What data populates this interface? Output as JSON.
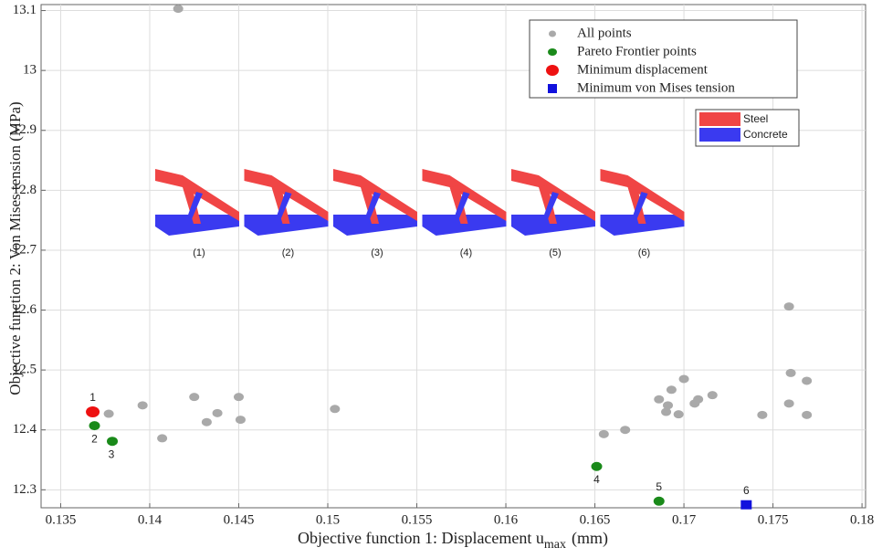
{
  "chart_data": {
    "type": "scatter",
    "xlabel": [
      "Objective function 1: Displacement u",
      "max",
      "(mm)"
    ],
    "ylabel": "Objective function 2: Von Mises tension (MPa)",
    "xlim": [
      0.1339,
      0.1802
    ],
    "ylim": [
      12.27,
      13.11
    ],
    "xticks": [
      0.135,
      0.14,
      0.145,
      0.15,
      0.155,
      0.16,
      0.165,
      0.17,
      0.175,
      0.18
    ],
    "yticks": [
      12.3,
      12.4,
      12.5,
      12.6,
      12.7,
      12.8,
      12.9,
      13,
      13.1
    ],
    "grid": true,
    "legend": "upper right",
    "series": [
      {
        "name": "All points",
        "color": "#a9a9a9",
        "x": [
          0.1416,
          0.1377,
          0.1396,
          0.1407,
          0.1425,
          0.1432,
          0.1438,
          0.145,
          0.1451,
          0.1504,
          0.1655,
          0.1667,
          0.1686,
          0.169,
          0.1691,
          0.1693,
          0.1697,
          0.17,
          0.1706,
          0.1708,
          0.1716,
          0.1744,
          0.1759,
          0.176,
          0.1759,
          0.1769,
          0.1769
        ],
        "y": [
          13.103,
          12.427,
          12.441,
          12.386,
          12.455,
          12.413,
          12.428,
          12.455,
          12.417,
          12.435,
          12.393,
          12.4,
          12.451,
          12.43,
          12.441,
          12.467,
          12.426,
          12.485,
          12.444,
          12.451,
          12.458,
          12.425,
          12.606,
          12.495,
          12.444,
          12.482,
          12.425
        ]
      },
      {
        "name": "Pareto Frontier points",
        "color": "#1a8a1a",
        "x": [
          0.1369,
          0.1379,
          0.1651,
          0.1686
        ],
        "y": [
          12.407,
          12.381,
          12.339,
          12.281
        ],
        "point_labels": [
          "2",
          "3",
          "4",
          "5"
        ]
      },
      {
        "name": "Minimum displacement",
        "color": "#ee1111",
        "x": [
          0.1368
        ],
        "y": [
          12.43
        ],
        "point_labels": [
          "1"
        ]
      },
      {
        "name": "Minimum von Mises tension",
        "color": "#1111dd",
        "x": [
          0.1735
        ],
        "y": [
          12.275
        ],
        "point_labels": [
          "6"
        ]
      }
    ],
    "insets": [
      "(1)",
      "(2)",
      "(3)",
      "(4)",
      "(5)",
      "(6)"
    ],
    "materials": [
      {
        "name": "Steel",
        "color": "#f04545"
      },
      {
        "name": "Concrete",
        "color": "#3a3af0"
      }
    ]
  }
}
